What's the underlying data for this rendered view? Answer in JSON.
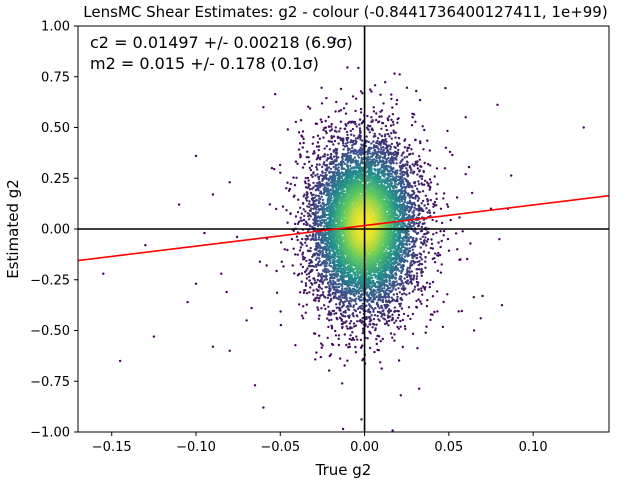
{
  "chart_data": {
    "type": "scatter",
    "title": "LensMC Shear Estimates: g2  - colour (-0.8441736400127411, 1e+99)",
    "xlabel": "True g2",
    "ylabel": "Estimated g2",
    "xlim": [
      -0.17,
      0.145
    ],
    "ylim": [
      -1.0,
      1.0
    ],
    "xticks": [
      -0.15,
      -0.1,
      -0.05,
      0.0,
      0.05,
      0.1
    ],
    "xtick_labels": [
      "−0.15",
      "−0.10",
      "−0.05",
      "0.00",
      "0.05",
      "0.10"
    ],
    "yticks": [
      -1.0,
      -0.75,
      -0.5,
      -0.25,
      0.0,
      0.25,
      0.5,
      0.75,
      1.0
    ],
    "ytick_labels": [
      "−1.00",
      "−0.75",
      "−0.50",
      "−0.25",
      "0.00",
      "0.25",
      "0.50",
      "0.75",
      "1.00"
    ],
    "annotations": [
      "c2 = 0.01497 +/- 0.00218 (6.9σ)",
      "m2 = 0.015 +/- 0.178 (0.1σ)"
    ],
    "reference_lines": {
      "x": 0.0,
      "y": 0.0,
      "color": "#000000"
    },
    "fit_line": {
      "x": [
        -0.17,
        0.145
      ],
      "y": [
        -0.1554,
        0.164
      ],
      "color": "#ff0000"
    },
    "scatter_distribution": {
      "x_center": 0.0,
      "x_spread": 0.015,
      "y_center": 0.015,
      "y_spread": 0.2,
      "count": 9000,
      "colormap": [
        "#440154",
        "#3b528b",
        "#21918c",
        "#5ec962",
        "#fde725"
      ]
    },
    "outlier_points": [
      [
        -0.155,
        -0.22
      ],
      [
        -0.145,
        -0.65
      ],
      [
        -0.13,
        -0.08
      ],
      [
        -0.125,
        -0.53
      ],
      [
        -0.11,
        0.12
      ],
      [
        -0.105,
        -0.36
      ],
      [
        -0.1,
        0.36
      ],
      [
        -0.1,
        -0.27
      ],
      [
        -0.095,
        -0.02
      ],
      [
        -0.09,
        0.17
      ],
      [
        -0.09,
        -0.58
      ],
      [
        -0.085,
        -0.22
      ],
      [
        -0.08,
        0.23
      ],
      [
        -0.08,
        -0.6
      ],
      [
        -0.07,
        -0.45
      ],
      [
        -0.065,
        -0.77
      ],
      [
        -0.06,
        0.6
      ],
      [
        -0.06,
        -0.88
      ],
      [
        -0.055,
        0.3
      ],
      [
        0.06,
        0.55
      ],
      [
        0.065,
        -0.5
      ],
      [
        0.075,
        0.1
      ],
      [
        0.08,
        -0.05
      ],
      [
        0.085,
        0.1
      ],
      [
        0.13,
        0.5
      ],
      [
        0.07,
        -0.33
      ],
      [
        0.06,
        0.27
      ],
      [
        0.055,
        -0.1
      ]
    ],
    "grid": false,
    "legend": "none"
  }
}
